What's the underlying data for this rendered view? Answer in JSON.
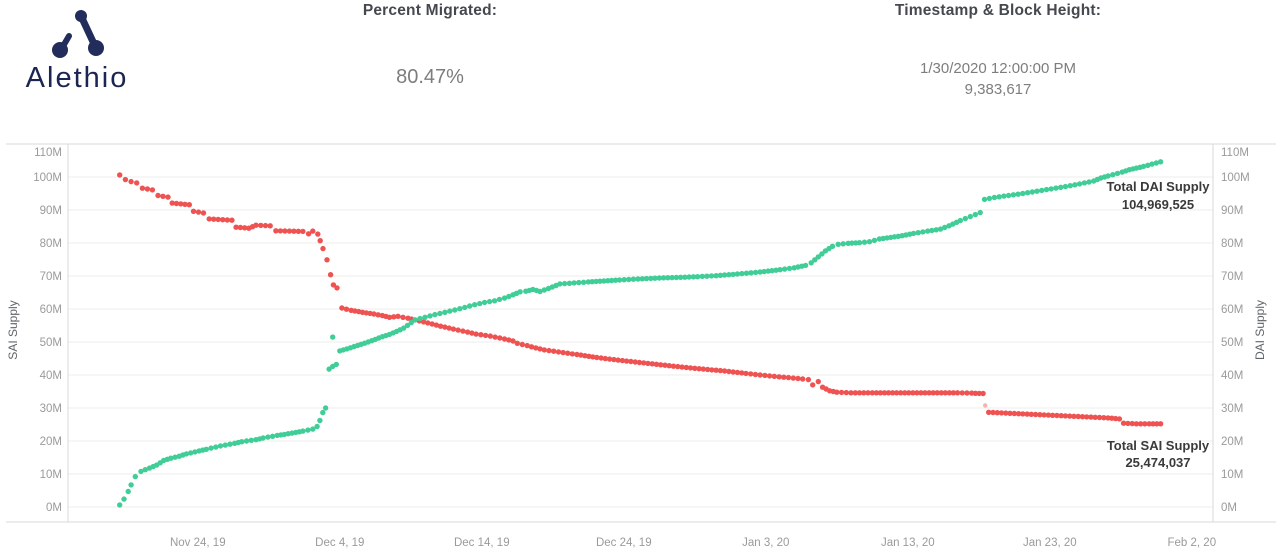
{
  "header": {
    "logo_text": "Alethio",
    "logo_color": "#232d5c",
    "percent_migrated": {
      "label": "Percent Migrated:",
      "value": "80.47%"
    },
    "timestamp_block": {
      "label": "Timestamp & Block Height:",
      "timestamp": "1/30/2020 12:00:00 PM",
      "block_height": "9,383,617"
    }
  },
  "chart_data": {
    "type": "scatter",
    "title": "",
    "grid": true,
    "colors": {
      "grid": "#ececec",
      "axis_line": "#d9d9d9",
      "tick_text": "#9a9a9a",
      "axis_title_text": "#5f6468",
      "annotation_text": "#3a3a3a"
    },
    "x_axis": {
      "day0_date": "Nov 15, 2019",
      "ticks": [
        {
          "label": "Nov 24, 19",
          "day": 9
        },
        {
          "label": "Dec 4, 19",
          "day": 19
        },
        {
          "label": "Dec 14, 19",
          "day": 29
        },
        {
          "label": "Dec 24, 19",
          "day": 39
        },
        {
          "label": "Jan 3, 20",
          "day": 49
        },
        {
          "label": "Jan 13, 20",
          "day": 59
        },
        {
          "label": "Jan 23, 20",
          "day": 69
        },
        {
          "label": "Feb 2, 20",
          "day": 79
        }
      ]
    },
    "y_left": {
      "title": "SAI Supply",
      "min": 0,
      "max": 110,
      "tick_labels": [
        "0M",
        "10M",
        "20M",
        "30M",
        "40M",
        "50M",
        "60M",
        "70M",
        "80M",
        "90M",
        "100M",
        "110M"
      ]
    },
    "y_right": {
      "title": "DAI Supply",
      "min": 0,
      "max": 110,
      "tick_labels": [
        "0M",
        "10M",
        "20M",
        "30M",
        "40M",
        "50M",
        "60M",
        "70M",
        "80M",
        "90M",
        "100M",
        "110M"
      ]
    },
    "series": [
      {
        "name": "Total SAI Supply",
        "color": "#ee5352",
        "annotation": [
          "Total SAI Supply",
          "25,474,037"
        ],
        "segments": [
          [
            [
              3.5,
              100.6
            ],
            [
              3.9,
              99.2
            ],
            [
              4.3,
              98.6
            ],
            [
              4.7,
              98.2
            ],
            [
              5.1,
              96.6
            ],
            [
              5.8,
              96.1
            ],
            [
              6.2,
              94.4
            ],
            [
              6.9,
              93.9
            ],
            [
              7.2,
              92.1
            ],
            [
              8.4,
              91.6
            ],
            [
              8.7,
              89.6
            ],
            [
              9.4,
              89.1
            ],
            [
              9.8,
              87.3
            ],
            [
              11.4,
              86.9
            ],
            [
              11.7,
              84.8
            ],
            [
              12.6,
              84.5
            ],
            [
              13.1,
              85.4
            ],
            [
              14.1,
              85.2
            ],
            [
              14.5,
              83.7
            ],
            [
              16.4,
              83.5
            ],
            [
              16.8,
              82.8
            ],
            [
              17.1,
              83.6
            ],
            [
              17.45,
              82.7
            ]
          ],
          [
            [
              17.62,
              80.7
            ],
            [
              17.82,
              78.3
            ]
          ],
          [
            [
              18.35,
              70.4
            ],
            [
              18.55,
              67.3
            ],
            [
              18.8,
              66.4
            ]
          ],
          [
            [
              19.15,
              60.3
            ],
            [
              19.8,
              59.6
            ],
            [
              20.6,
              59.0
            ],
            [
              21.4,
              58.5
            ],
            [
              22.0,
              58.0
            ],
            [
              22.5,
              57.5
            ],
            [
              23.1,
              57.8
            ],
            [
              23.8,
              57.2
            ],
            [
              24.3,
              56.7
            ],
            [
              25.2,
              55.8
            ],
            [
              26.1,
              54.8
            ],
            [
              27.0,
              53.9
            ],
            [
              28.0,
              53.0
            ],
            [
              28.6,
              52.4
            ],
            [
              29.6,
              51.8
            ],
            [
              30.6,
              50.9
            ],
            [
              31.2,
              50.3
            ],
            [
              31.5,
              49.6
            ],
            [
              32.2,
              48.9
            ],
            [
              32.8,
              48.2
            ],
            [
              33.4,
              47.6
            ],
            [
              34.4,
              47.0
            ],
            [
              35.7,
              46.2
            ],
            [
              37.1,
              45.3
            ],
            [
              38.6,
              44.5
            ],
            [
              40.1,
              43.8
            ],
            [
              41.6,
              43.1
            ],
            [
              43.1,
              42.4
            ],
            [
              44.6,
              41.8
            ],
            [
              46.1,
              41.2
            ],
            [
              47.6,
              40.5
            ],
            [
              48.6,
              40.0
            ],
            [
              49.6,
              39.6
            ],
            [
              50.6,
              39.2
            ],
            [
              51.6,
              38.8
            ],
            [
              52.0,
              38.6
            ],
            [
              52.3,
              37.0
            ],
            [
              52.7,
              38.0
            ],
            [
              53.0,
              36.3
            ],
            [
              53.5,
              35.2
            ],
            [
              54.0,
              34.8
            ],
            [
              55.0,
              34.6
            ],
            [
              56.5,
              34.6
            ],
            [
              58.5,
              34.6
            ],
            [
              60.5,
              34.6
            ],
            [
              62.5,
              34.6
            ],
            [
              63.5,
              34.5
            ],
            [
              64.3,
              34.4
            ]
          ],
          [
            [
              64.7,
              28.7
            ],
            [
              65.6,
              28.5
            ],
            [
              67.1,
              28.2
            ],
            [
              68.6,
              27.9
            ],
            [
              70.1,
              27.6
            ],
            [
              71.6,
              27.3
            ],
            [
              73.1,
              27.0
            ],
            [
              73.9,
              26.7
            ],
            [
              74.2,
              25.4
            ],
            [
              75.1,
              25.2
            ],
            [
              76.0,
              25.2
            ],
            [
              76.8,
              25.2
            ]
          ]
        ],
        "outliers": [
          {
            "d": 18.1,
            "v": 74.9,
            "muted": false
          },
          {
            "d": 64.45,
            "v": 30.8,
            "muted": true
          }
        ]
      },
      {
        "name": "Total DAI Supply",
        "color": "#40cd97",
        "annotation": [
          "Total DAI Supply",
          "104,969,525"
        ],
        "segments": [
          [
            [
              3.5,
              0.6
            ],
            [
              3.8,
              2.4
            ],
            [
              4.1,
              4.7
            ],
            [
              4.3,
              6.7
            ],
            [
              4.6,
              9.2
            ],
            [
              5.0,
              10.8
            ],
            [
              5.6,
              11.8
            ],
            [
              6.1,
              12.7
            ],
            [
              6.6,
              14.1
            ],
            [
              7.1,
              14.8
            ],
            [
              7.7,
              15.4
            ],
            [
              8.2,
              16.1
            ],
            [
              9.1,
              17.0
            ],
            [
              9.6,
              17.5
            ],
            [
              10.6,
              18.5
            ],
            [
              11.6,
              19.3
            ],
            [
              12.1,
              19.8
            ],
            [
              13.1,
              20.4
            ],
            [
              13.6,
              20.9
            ],
            [
              14.6,
              21.7
            ],
            [
              15.1,
              22.0
            ],
            [
              15.9,
              22.6
            ],
            [
              16.4,
              23.0
            ],
            [
              17.1,
              23.6
            ],
            [
              17.4,
              24.4
            ],
            [
              17.6,
              26.2
            ],
            [
              17.8,
              28.6
            ],
            [
              18.0,
              30.0
            ]
          ],
          [
            [
              18.25,
              41.8
            ],
            [
              18.5,
              42.6
            ],
            [
              18.75,
              43.2
            ]
          ],
          [
            [
              19.0,
              47.3
            ],
            [
              19.5,
              47.9
            ],
            [
              20.0,
              48.6
            ],
            [
              20.5,
              49.3
            ],
            [
              21.0,
              50.0
            ],
            [
              21.5,
              50.8
            ],
            [
              22.0,
              51.6
            ],
            [
              22.5,
              52.3
            ],
            [
              23.0,
              53.2
            ],
            [
              23.5,
              54.2
            ],
            [
              24.3,
              56.7
            ],
            [
              25.0,
              57.5
            ],
            [
              25.7,
              58.3
            ],
            [
              26.4,
              59.0
            ],
            [
              27.1,
              59.7
            ],
            [
              27.8,
              60.5
            ],
            [
              28.5,
              61.3
            ],
            [
              29.2,
              62.0
            ],
            [
              29.9,
              62.5
            ],
            [
              30.6,
              63.3
            ],
            [
              31.2,
              64.3
            ],
            [
              31.7,
              65.2
            ],
            [
              32.1,
              65.4
            ],
            [
              32.6,
              65.9
            ],
            [
              33.1,
              65.3
            ],
            [
              33.7,
              66.2
            ],
            [
              34.5,
              67.6
            ],
            [
              35.5,
              67.9
            ],
            [
              36.5,
              68.2
            ],
            [
              37.6,
              68.5
            ],
            [
              38.7,
              68.8
            ],
            [
              40.0,
              69.1
            ],
            [
              41.5,
              69.4
            ],
            [
              43.0,
              69.6
            ],
            [
              44.2,
              69.8
            ],
            [
              45.5,
              70.1
            ],
            [
              47.0,
              70.6
            ],
            [
              48.6,
              71.2
            ],
            [
              50.0,
              71.9
            ],
            [
              51.0,
              72.5
            ],
            [
              51.8,
              73.2
            ],
            [
              52.2,
              74.0
            ],
            [
              52.7,
              75.8
            ],
            [
              53.2,
              77.6
            ],
            [
              53.7,
              79.0
            ],
            [
              54.1,
              79.6
            ],
            [
              54.8,
              79.9
            ],
            [
              55.6,
              80.1
            ],
            [
              56.3,
              80.4
            ],
            [
              57.0,
              81.2
            ],
            [
              57.8,
              81.7
            ],
            [
              58.6,
              82.2
            ],
            [
              59.4,
              82.9
            ],
            [
              60.4,
              83.6
            ],
            [
              61.3,
              84.2
            ],
            [
              61.9,
              85.2
            ],
            [
              62.7,
              86.8
            ],
            [
              63.4,
              88.0
            ],
            [
              64.1,
              89.2
            ],
            [
              64.4,
              93.2
            ],
            [
              65.1,
              93.8
            ],
            [
              66.1,
              94.4
            ],
            [
              67.1,
              95.0
            ],
            [
              68.1,
              95.7
            ],
            [
              69.1,
              96.4
            ],
            [
              70.1,
              97.1
            ],
            [
              71.1,
              97.9
            ],
            [
              72.1,
              98.8
            ],
            [
              72.6,
              99.7
            ],
            [
              73.1,
              100.3
            ],
            [
              74.1,
              101.5
            ],
            [
              74.6,
              102.2
            ],
            [
              75.1,
              102.7
            ],
            [
              75.6,
              103.2
            ],
            [
              76.2,
              103.9
            ],
            [
              76.8,
              104.6
            ]
          ]
        ],
        "outliers": [
          {
            "d": 18.5,
            "v": 51.5,
            "muted": false
          }
        ]
      }
    ]
  }
}
